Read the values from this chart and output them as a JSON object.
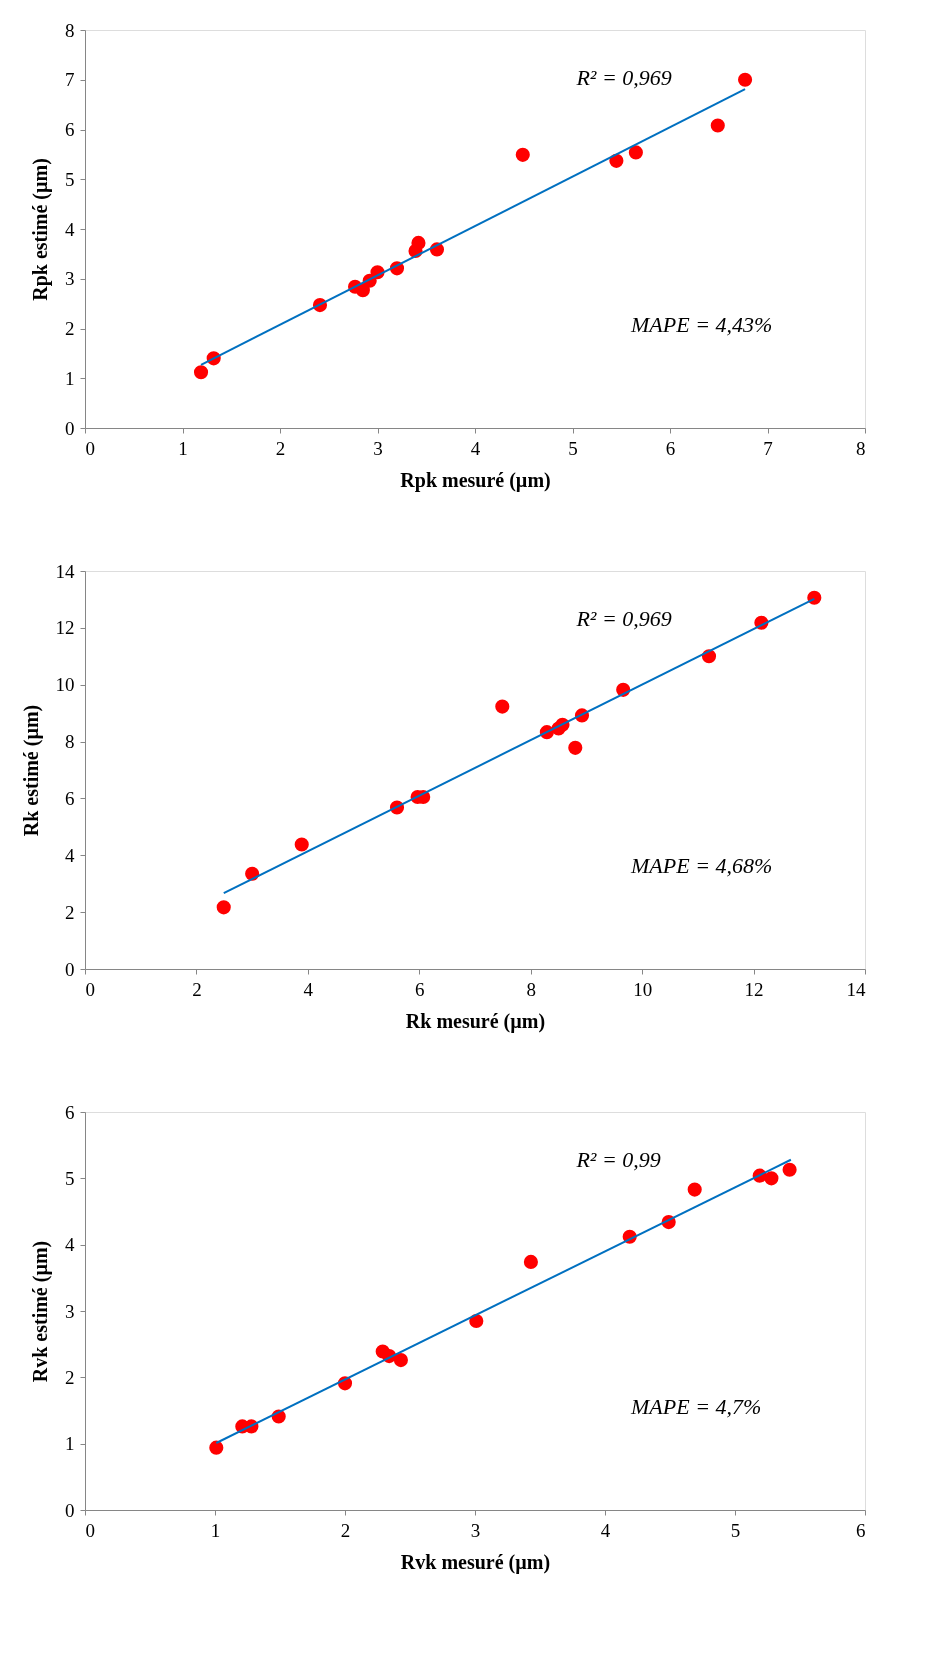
{
  "chart_data": [
    {
      "type": "scatter",
      "xlabel": "Rpk  mesuré  (µm)",
      "ylabel": "Rpk  estimé  (µm)",
      "xlim": [
        0,
        8
      ],
      "ylim": [
        0,
        8
      ],
      "xticks": [
        0,
        1,
        2,
        3,
        4,
        5,
        6,
        7,
        8
      ],
      "yticks": [
        0,
        1,
        2,
        3,
        4,
        5,
        6,
        7,
        8
      ],
      "grid": false,
      "annotations": [
        "R² = 0,969",
        "MAPE = 4,43%"
      ],
      "series": [
        {
          "color": "#ff0000",
          "marker": "circle",
          "x": [
            1.19,
            1.32,
            2.41,
            2.77,
            2.85,
            2.92,
            3.0,
            3.2,
            3.39,
            3.42,
            3.61,
            4.49,
            5.45,
            5.65,
            6.49,
            6.77
          ],
          "values": [
            1.12,
            1.4,
            2.47,
            2.84,
            2.77,
            2.96,
            3.13,
            3.21,
            3.56,
            3.72,
            3.59,
            5.49,
            5.37,
            5.54,
            6.08,
            7.0
          ]
        },
        {
          "type": "line",
          "color": "#0070c0",
          "x": [
            1.19,
            6.77
          ],
          "values": [
            1.27,
            6.81
          ]
        }
      ]
    },
    {
      "type": "scatter",
      "xlabel": "Rk  mesuré  (µm)",
      "ylabel": "Rk  estimé  (µm)",
      "xlim": [
        0,
        14
      ],
      "ylim": [
        0,
        14
      ],
      "xticks": [
        0,
        2,
        4,
        6,
        8,
        10,
        12,
        14
      ],
      "yticks": [
        0,
        2,
        4,
        6,
        8,
        10,
        12,
        14
      ],
      "grid": false,
      "annotations": [
        "R² = 0,969",
        "MAPE = 4,68%"
      ],
      "series": [
        {
          "color": "#ff0000",
          "marker": "circle",
          "x": [
            2.49,
            3.0,
            3.89,
            5.6,
            5.97,
            6.07,
            7.49,
            8.29,
            8.5,
            8.57,
            8.8,
            8.92,
            9.66,
            11.2,
            12.14,
            13.09
          ],
          "values": [
            2.17,
            3.35,
            4.38,
            5.68,
            6.05,
            6.05,
            9.23,
            8.33,
            8.46,
            8.59,
            7.78,
            8.92,
            9.82,
            11.0,
            12.18,
            13.06
          ]
        },
        {
          "type": "line",
          "color": "#0070c0",
          "x": [
            2.49,
            13.09
          ],
          "values": [
            2.67,
            13.02
          ]
        }
      ]
    },
    {
      "type": "scatter",
      "xlabel": "Rvk  mesuré  (µm)",
      "ylabel": "Rvk  estimé  (µm)",
      "xlim": [
        0,
        6
      ],
      "ylim": [
        0,
        6
      ],
      "xticks": [
        0,
        1,
        2,
        3,
        4,
        5,
        6
      ],
      "yticks": [
        0,
        1,
        2,
        3,
        4,
        5,
        6
      ],
      "grid": false,
      "annotations": [
        "R²  = 0,99",
        "MAPE = 4,7%"
      ],
      "series": [
        {
          "color": "#ff0000",
          "marker": "circle",
          "x": [
            1.01,
            1.21,
            1.28,
            1.49,
            2.0,
            2.29,
            2.34,
            2.43,
            3.01,
            3.43,
            4.19,
            4.49,
            4.69,
            5.19,
            5.28,
            5.42
          ],
          "values": [
            0.94,
            1.26,
            1.26,
            1.41,
            1.91,
            2.39,
            2.32,
            2.26,
            2.85,
            3.74,
            4.12,
            4.34,
            4.83,
            5.04,
            5.0,
            5.13
          ]
        },
        {
          "type": "line",
          "color": "#0070c0",
          "x": [
            1.01,
            5.43
          ],
          "values": [
            1.01,
            5.28
          ]
        }
      ]
    }
  ]
}
